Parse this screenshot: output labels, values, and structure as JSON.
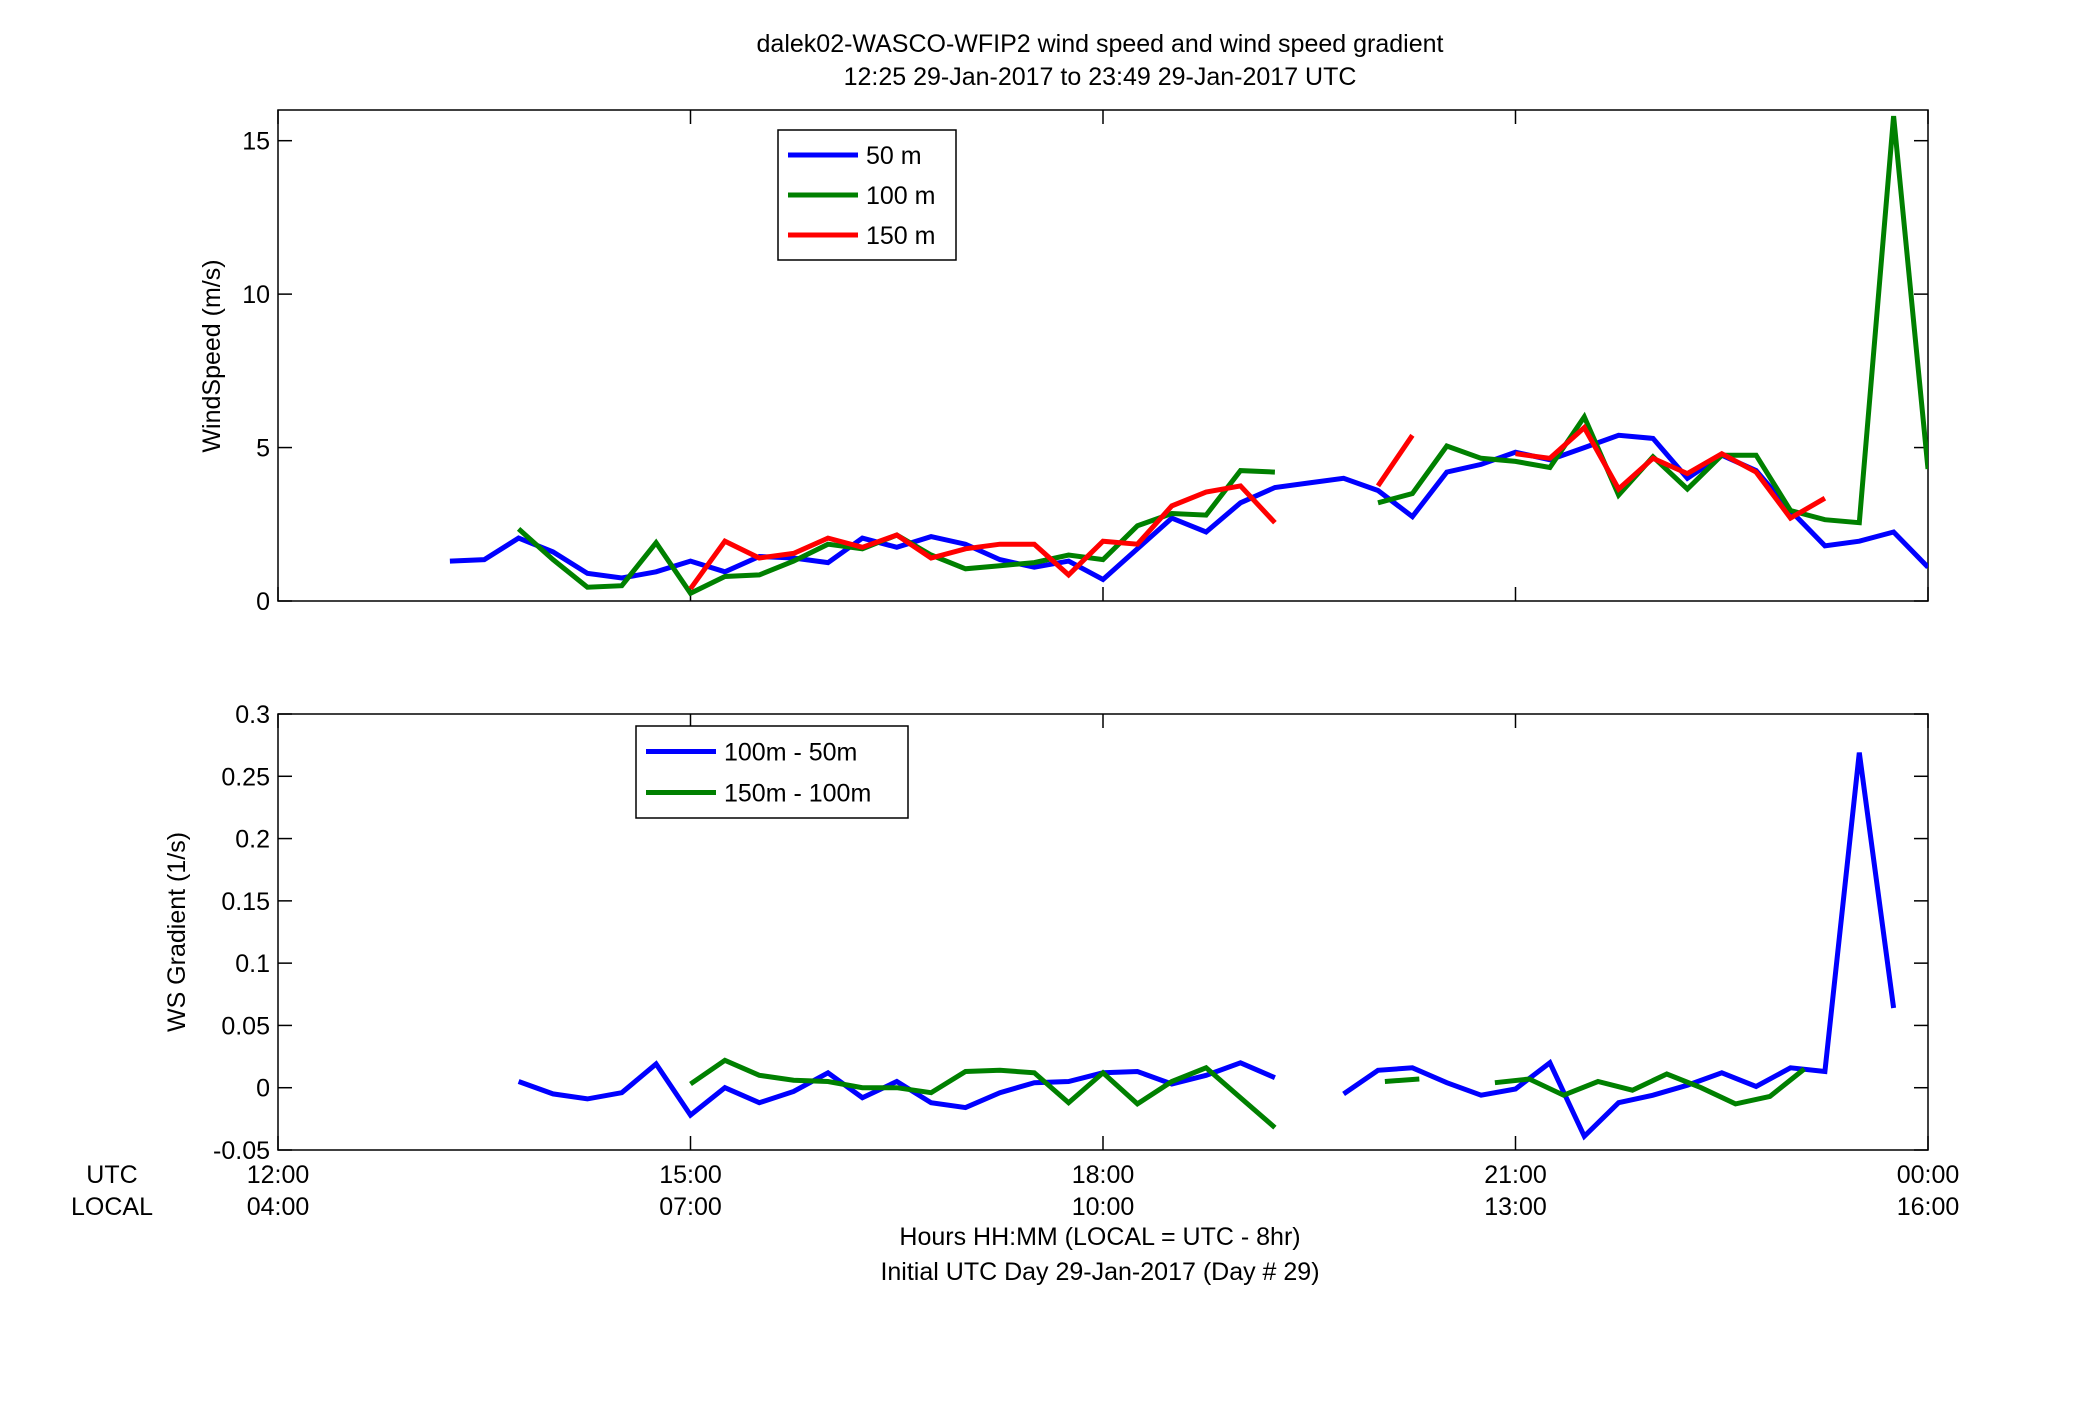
{
  "figure": {
    "title_line1": "dalek02-WASCO-WFIP2  wind speed and wind speed gradient",
    "title_line2": "12:25 29-Jan-2017 to 23:49 29-Jan-2017  UTC",
    "xlabel_line1": "Hours HH:MM  (LOCAL = UTC - 8hr)",
    "xlabel_line2": "Initial UTC Day 29-Jan-2017 (Day # 29)",
    "row_label_utc": "UTC",
    "row_label_local": "LOCAL",
    "x_ticks_utc": [
      "12:00",
      "15:00",
      "18:00",
      "21:00",
      "00:00"
    ],
    "x_ticks_local": [
      "04:00",
      "07:00",
      "10:00",
      "13:00",
      "16:00"
    ]
  },
  "chart_data": [
    {
      "type": "line",
      "ylabel": "WindSpeed (m/s)",
      "xlim": [
        12,
        24
      ],
      "ylim": [
        0,
        16
      ],
      "yticks": [
        0,
        5,
        10,
        15
      ],
      "xticks": [
        12,
        15,
        18,
        21,
        24
      ],
      "legend_position": "top-left",
      "series": [
        {
          "name": "50 m",
          "color": "#0000ff",
          "points": [
            [
              13.25,
              1.3
            ],
            [
              13.5,
              1.35
            ],
            [
              13.75,
              2.05
            ],
            [
              14.0,
              1.6
            ],
            [
              14.25,
              0.9
            ],
            [
              14.5,
              0.75
            ],
            [
              14.75,
              0.95
            ],
            [
              15.0,
              1.3
            ],
            [
              15.25,
              0.95
            ],
            [
              15.5,
              1.45
            ],
            [
              15.75,
              1.4
            ],
            [
              16.0,
              1.25
            ],
            [
              16.25,
              2.05
            ],
            [
              16.5,
              1.75
            ],
            [
              16.75,
              2.1
            ],
            [
              17.0,
              1.85
            ],
            [
              17.25,
              1.35
            ],
            [
              17.5,
              1.1
            ],
            [
              17.75,
              1.3
            ],
            [
              18.0,
              0.7
            ],
            [
              18.25,
              1.7
            ],
            [
              18.5,
              2.7
            ],
            [
              18.75,
              2.25
            ],
            [
              19.0,
              3.2
            ],
            [
              19.25,
              3.7
            ],
            [
              19.5,
              3.85
            ],
            [
              19.75,
              4.0
            ],
            [
              20.0,
              3.6
            ],
            [
              20.25,
              2.75
            ],
            [
              20.5,
              4.2
            ],
            [
              20.75,
              4.45
            ],
            [
              21.0,
              4.85
            ],
            [
              21.25,
              4.6
            ],
            [
              21.5,
              5.0
            ],
            [
              21.75,
              5.4
            ],
            [
              22.0,
              5.3
            ],
            [
              22.25,
              4.0
            ],
            [
              22.5,
              4.75
            ],
            [
              22.75,
              4.25
            ],
            [
              23.0,
              2.95
            ],
            [
              23.25,
              1.8
            ],
            [
              23.5,
              1.95
            ],
            [
              23.75,
              2.25
            ],
            [
              24.0,
              1.1
            ]
          ]
        },
        {
          "name": "100 m",
          "color": "#008000",
          "points": [
            [
              13.75,
              2.35
            ],
            [
              14.0,
              1.35
            ],
            [
              14.25,
              0.45
            ],
            [
              14.5,
              0.5
            ],
            [
              14.75,
              1.9
            ],
            [
              15.0,
              0.25
            ],
            [
              15.25,
              0.8
            ],
            [
              15.5,
              0.85
            ],
            [
              15.75,
              1.3
            ],
            [
              16.0,
              1.85
            ],
            [
              16.25,
              1.7
            ],
            [
              16.5,
              2.15
            ],
            [
              16.75,
              1.5
            ],
            [
              17.0,
              1.05
            ],
            [
              17.25,
              1.15
            ],
            [
              17.5,
              1.25
            ],
            [
              17.75,
              1.5
            ],
            [
              18.0,
              1.35
            ],
            [
              18.25,
              2.45
            ],
            [
              18.5,
              2.85
            ],
            [
              18.75,
              2.8
            ],
            [
              19.0,
              4.25
            ],
            [
              19.25,
              4.2
            ],
            [
              null,
              null
            ],
            [
              20.0,
              3.2
            ],
            [
              20.25,
              3.5
            ],
            [
              20.5,
              5.05
            ],
            [
              20.75,
              4.65
            ],
            [
              21.0,
              4.55
            ],
            [
              21.25,
              4.35
            ],
            [
              21.5,
              6.0
            ],
            [
              21.75,
              3.45
            ],
            [
              22.0,
              4.7
            ],
            [
              22.25,
              3.65
            ],
            [
              22.5,
              4.75
            ],
            [
              22.75,
              4.75
            ],
            [
              23.0,
              2.95
            ],
            [
              23.25,
              2.65
            ],
            [
              23.5,
              2.55
            ],
            [
              23.75,
              15.8
            ],
            [
              24.0,
              4.3
            ]
          ]
        },
        {
          "name": "150 m",
          "color": "#ff0000",
          "points": [
            [
              15.0,
              0.4
            ],
            [
              15.25,
              1.95
            ],
            [
              15.5,
              1.4
            ],
            [
              15.75,
              1.55
            ],
            [
              16.0,
              2.05
            ],
            [
              16.25,
              1.75
            ],
            [
              16.5,
              2.15
            ],
            [
              16.75,
              1.4
            ],
            [
              17.0,
              1.7
            ],
            [
              17.25,
              1.85
            ],
            [
              17.5,
              1.85
            ],
            [
              17.75,
              0.85
            ],
            [
              18.0,
              1.95
            ],
            [
              18.25,
              1.85
            ],
            [
              18.5,
              3.1
            ],
            [
              18.75,
              3.55
            ],
            [
              19.0,
              3.75
            ],
            [
              19.25,
              2.55
            ],
            [
              null,
              null
            ],
            [
              20.0,
              3.75
            ],
            [
              20.25,
              5.4
            ],
            [
              null,
              null
            ],
            [
              21.0,
              4.8
            ],
            [
              21.25,
              4.65
            ],
            [
              21.5,
              5.65
            ],
            [
              21.75,
              3.65
            ],
            [
              22.0,
              4.65
            ],
            [
              22.25,
              4.15
            ],
            [
              22.5,
              4.8
            ],
            [
              22.75,
              4.2
            ],
            [
              23.0,
              2.7
            ],
            [
              23.25,
              3.35
            ]
          ]
        }
      ]
    },
    {
      "type": "line",
      "ylabel": "WS Gradient (1/s)",
      "xlim": [
        12,
        24
      ],
      "ylim": [
        -0.05,
        0.3
      ],
      "yticks": [
        -0.05,
        0,
        0.05,
        0.1,
        0.15,
        0.2,
        0.25,
        0.3
      ],
      "xticks": [
        12,
        15,
        18,
        21,
        24
      ],
      "legend_position": "top-left",
      "series": [
        {
          "name": "100m - 50m",
          "color": "#0000ff",
          "points": [
            [
              13.75,
              0.005
            ],
            [
              14.0,
              -0.005
            ],
            [
              14.25,
              -0.009
            ],
            [
              14.5,
              -0.004
            ],
            [
              14.75,
              0.019
            ],
            [
              15.0,
              -0.022
            ],
            [
              15.25,
              0.0
            ],
            [
              15.5,
              -0.012
            ],
            [
              15.75,
              -0.003
            ],
            [
              16.0,
              0.012
            ],
            [
              16.25,
              -0.008
            ],
            [
              16.5,
              0.005
            ],
            [
              16.75,
              -0.012
            ],
            [
              17.0,
              -0.016
            ],
            [
              17.25,
              -0.004
            ],
            [
              17.5,
              0.004
            ],
            [
              17.75,
              0.005
            ],
            [
              18.0,
              0.012
            ],
            [
              18.25,
              0.013
            ],
            [
              18.5,
              0.003
            ],
            [
              18.75,
              0.01
            ],
            [
              19.0,
              0.02
            ],
            [
              19.25,
              0.008
            ],
            [
              null,
              null
            ],
            [
              19.75,
              -0.005
            ],
            [
              20.0,
              0.014
            ],
            [
              20.25,
              0.016
            ],
            [
              20.5,
              0.004
            ],
            [
              20.75,
              -0.006
            ],
            [
              21.0,
              -0.001
            ],
            [
              21.25,
              0.02
            ],
            [
              21.5,
              -0.039
            ],
            [
              21.75,
              -0.012
            ],
            [
              22.0,
              -0.006
            ],
            [
              22.25,
              0.002
            ],
            [
              22.5,
              0.012
            ],
            [
              22.75,
              0.001
            ],
            [
              23.0,
              0.016
            ],
            [
              23.25,
              0.013
            ],
            [
              23.5,
              0.269
            ],
            [
              23.75,
              0.064
            ]
          ]
        },
        {
          "name": "150m - 100m",
          "color": "#008000",
          "points": [
            [
              15.0,
              0.003
            ],
            [
              15.25,
              0.022
            ],
            [
              15.5,
              0.01
            ],
            [
              15.75,
              0.006
            ],
            [
              16.0,
              0.005
            ],
            [
              16.25,
              0.0
            ],
            [
              16.5,
              0.0
            ],
            [
              16.75,
              -0.004
            ],
            [
              17.0,
              0.013
            ],
            [
              17.25,
              0.014
            ],
            [
              17.5,
              0.012
            ],
            [
              17.75,
              -0.012
            ],
            [
              18.0,
              0.012
            ],
            [
              18.25,
              -0.013
            ],
            [
              18.5,
              0.005
            ],
            [
              18.75,
              0.016
            ],
            [
              19.0,
              -0.008
            ],
            [
              19.25,
              -0.032
            ],
            [
              null,
              null
            ],
            [
              20.05,
              0.005
            ],
            [
              20.3,
              0.007
            ],
            [
              null,
              null
            ],
            [
              20.85,
              0.004
            ],
            [
              21.1,
              0.007
            ],
            [
              21.35,
              -0.006
            ],
            [
              21.6,
              0.005
            ],
            [
              21.85,
              -0.002
            ],
            [
              22.1,
              0.011
            ],
            [
              22.35,
              0.0
            ],
            [
              22.6,
              -0.013
            ],
            [
              22.85,
              -0.007
            ],
            [
              23.1,
              0.015
            ]
          ]
        }
      ]
    }
  ]
}
